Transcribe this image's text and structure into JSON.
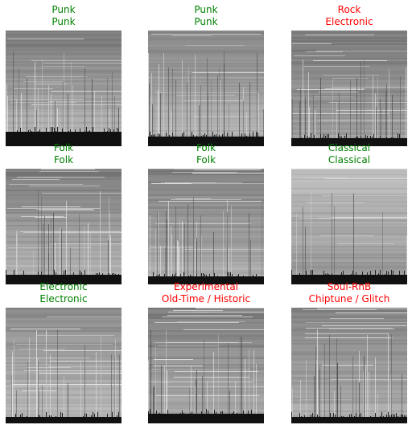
{
  "colors": {
    "correct": "#008000",
    "incorrect": "#ff0000"
  },
  "panels": [
    {
      "label": "Punk",
      "prediction": "Punk",
      "correct": true
    },
    {
      "label": "Punk",
      "prediction": "Punk",
      "correct": true
    },
    {
      "label": "Rock",
      "prediction": "Electronic",
      "correct": false
    },
    {
      "label": "Folk",
      "prediction": "Folk",
      "correct": true
    },
    {
      "label": "Folk",
      "prediction": "Folk",
      "correct": true
    },
    {
      "label": "Classical",
      "prediction": "Classical",
      "correct": true
    },
    {
      "label": "Electronic",
      "prediction": "Electronic",
      "correct": true
    },
    {
      "label": "Experimental",
      "prediction": "Old-Time / Historic",
      "correct": false
    },
    {
      "label": "Soul-RnB",
      "prediction": "Chiptune / Glitch",
      "correct": false
    }
  ]
}
